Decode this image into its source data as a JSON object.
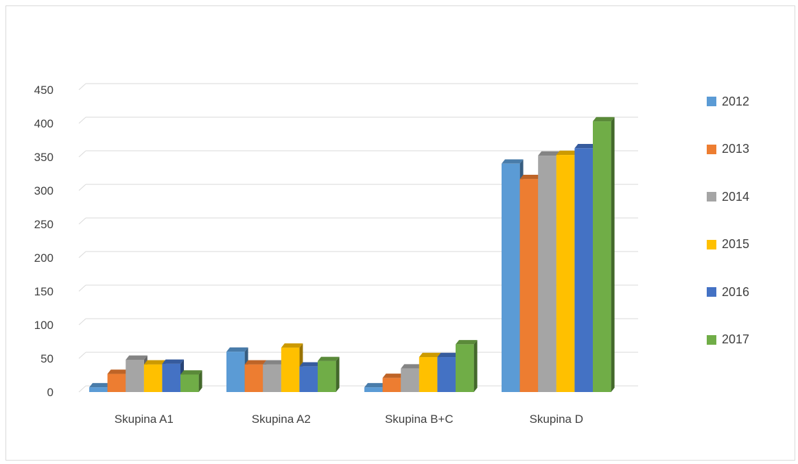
{
  "chart_data": {
    "type": "bar",
    "categories": [
      "Skupina A1",
      "Skupina A2",
      "Skupina B+C",
      "Skupina D"
    ],
    "series": [
      {
        "name": "2012",
        "color": "#5b9bd5",
        "values": [
          7,
          60,
          7,
          340
        ]
      },
      {
        "name": "2013",
        "color": "#ed7d31",
        "values": [
          27,
          41,
          21,
          317
        ]
      },
      {
        "name": "2014",
        "color": "#a5a5a5",
        "values": [
          48,
          41,
          35,
          352
        ]
      },
      {
        "name": "2015",
        "color": "#ffc000",
        "values": [
          41,
          66,
          52,
          353
        ]
      },
      {
        "name": "2016",
        "color": "#4472c4",
        "values": [
          42,
          38,
          52,
          363
        ]
      },
      {
        "name": "2017",
        "color": "#70ad47",
        "values": [
          26,
          46,
          71,
          403
        ]
      }
    ],
    "yticks": [
      "0",
      "50",
      "100",
      "150",
      "200",
      "250",
      "300",
      "350",
      "400",
      "450"
    ],
    "ylim": [
      0,
      450
    ],
    "grid": true,
    "legend_position": "right",
    "title": "",
    "xlabel": "",
    "ylabel": ""
  }
}
